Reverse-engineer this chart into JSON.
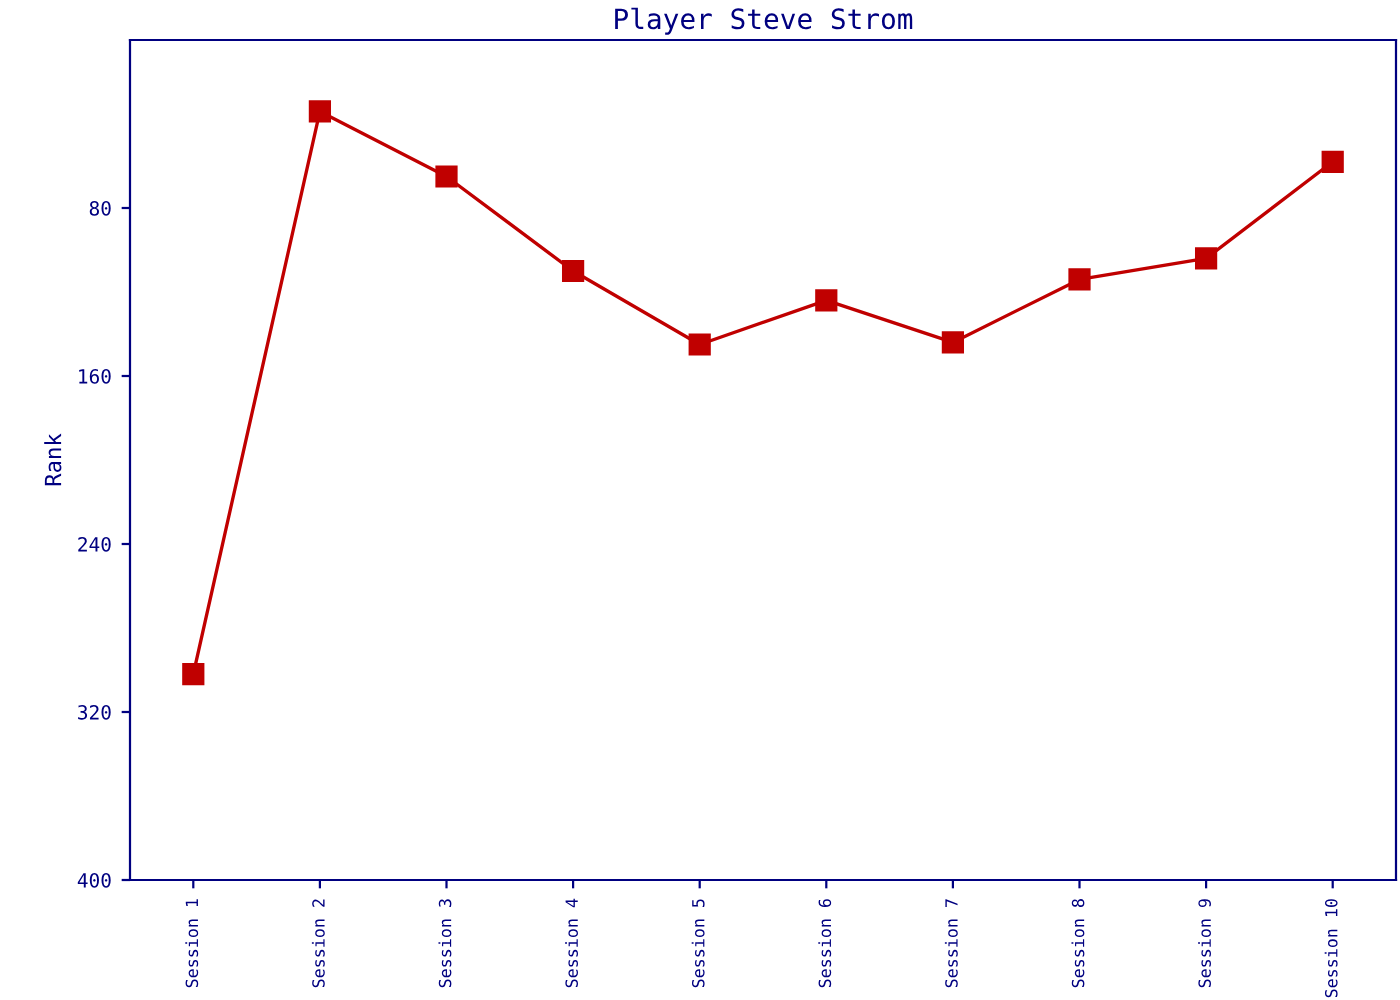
{
  "chart_data": {
    "type": "line",
    "title": "Player Steve Strom",
    "ylabel": "Rank",
    "categories": [
      "Session 1",
      "Session 2",
      "Session 3",
      "Session 4",
      "Session 5",
      "Session 6",
      "Session 7",
      "Session 8",
      "Session 9",
      "Session 10"
    ],
    "series": [
      {
        "color": "#c00000",
        "values": [
          302,
          34,
          65,
          110,
          145,
          124,
          144,
          114,
          104,
          58
        ]
      }
    ],
    "ylim": [
      400,
      0
    ],
    "yticks": [
      80,
      160,
      240,
      320,
      400
    ],
    "grid": false,
    "legend": false,
    "marker": "square",
    "line_style": "solid"
  }
}
